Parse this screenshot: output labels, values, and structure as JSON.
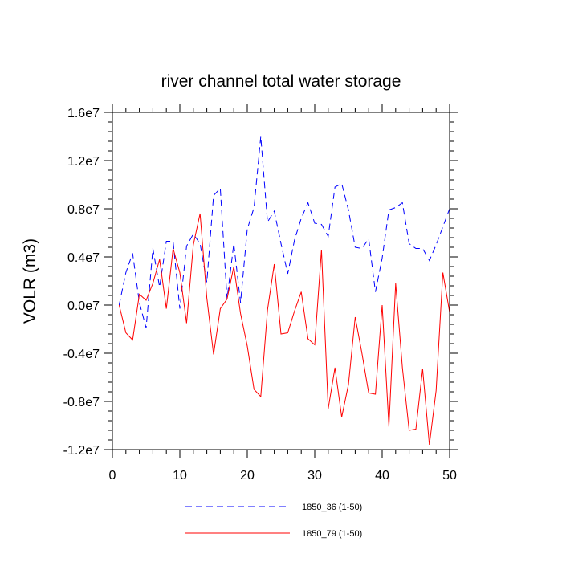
{
  "chart_data": {
    "type": "line",
    "title": "river channel total water storage",
    "xlabel": "",
    "ylabel": "VOLR  (m3)",
    "xlim": [
      0,
      50
    ],
    "ylim": [
      -12000000,
      16000000
    ],
    "x_ticks": [
      0,
      10,
      20,
      30,
      40,
      50
    ],
    "x_tick_labels": [
      "0",
      "10",
      "20",
      "30",
      "40",
      "50"
    ],
    "y_ticks": [
      -12000000,
      -8000000,
      -4000000,
      0,
      4000000,
      8000000,
      12000000,
      16000000
    ],
    "y_tick_labels": [
      "-1.2e7",
      "-0.8e7",
      "-0.4e7",
      "0.0e7",
      "0.4e7",
      "0.8e7",
      "1.2e7",
      "1.6e7"
    ],
    "grid": false,
    "legend_position": "bottom-center",
    "x": [
      1,
      2,
      3,
      4,
      5,
      6,
      7,
      8,
      9,
      10,
      11,
      12,
      13,
      14,
      15,
      16,
      17,
      18,
      19,
      20,
      21,
      22,
      23,
      24,
      25,
      26,
      27,
      28,
      29,
      30,
      31,
      32,
      33,
      34,
      35,
      36,
      37,
      38,
      39,
      40,
      41,
      42,
      43,
      44,
      45,
      46,
      47,
      48,
      49,
      50
    ],
    "series": [
      {
        "name": "1850_36 (1-50)",
        "color": "#0000ff",
        "dash": "dashed",
        "values": [
          0,
          2700000,
          4300000,
          200000,
          -1900000,
          4700000,
          1500000,
          5300000,
          5300000,
          -300000,
          4900000,
          5900000,
          5100000,
          1900000,
          9100000,
          9700000,
          500000,
          5100000,
          200000,
          6300000,
          8100000,
          14000000,
          6900000,
          7800000,
          5100000,
          2600000,
          5400000,
          7200000,
          8500000,
          6800000,
          6700000,
          5700000,
          9800000,
          10100000,
          7900000,
          4800000,
          4700000,
          5500000,
          1100000,
          3900000,
          7900000,
          8100000,
          8500000,
          5100000,
          4700000,
          4700000,
          3700000,
          5000000,
          6500000,
          8000000
        ]
      },
      {
        "name": "1850_79 (1-50)",
        "color": "#ff0000",
        "dash": "solid",
        "values": [
          0,
          -2300000,
          -2900000,
          900000,
          400000,
          1800000,
          3800000,
          -300000,
          4700000,
          2700000,
          -1500000,
          5000000,
          7600000,
          600000,
          -4100000,
          -300000,
          500000,
          3200000,
          -700000,
          -3400000,
          -7000000,
          -7600000,
          -400000,
          3400000,
          -2400000,
          -2300000,
          -500000,
          1100000,
          -2800000,
          -3300000,
          4600000,
          -8600000,
          -5200000,
          -9300000,
          -6600000,
          -1000000,
          -4000000,
          -7300000,
          -7400000,
          0,
          -10100000,
          1800000,
          -5200000,
          -10400000,
          -10300000,
          -5300000,
          -11600000,
          -7100000,
          2700000,
          -600000
        ]
      }
    ]
  }
}
